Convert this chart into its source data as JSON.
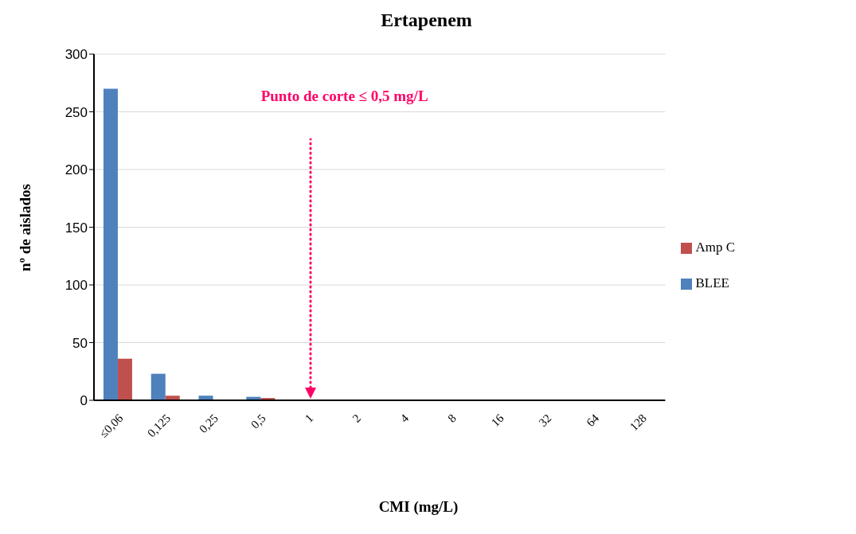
{
  "chart_data": {
    "type": "bar",
    "title": "Ertapenem",
    "xlabel": "CMI (mg/L)",
    "ylabel": "nº de aislados",
    "categories": [
      "≤0,06",
      "0,125",
      "0,25",
      "0,5",
      "1",
      "2",
      "4",
      "8",
      "16",
      "32",
      "64",
      "128"
    ],
    "series": [
      {
        "name": "BLEE",
        "color": "#4f81bd",
        "values": [
          270,
          23,
          4,
          3,
          0,
          0,
          0,
          0,
          0,
          0,
          0,
          0
        ]
      },
      {
        "name": "Amp C",
        "color": "#c0504d",
        "values": [
          36,
          4,
          0,
          2,
          0,
          0,
          0,
          0,
          0,
          0,
          0,
          0
        ]
      }
    ],
    "ylim": [
      0,
      300
    ],
    "yticks": [
      0,
      50,
      100,
      150,
      200,
      250,
      300
    ],
    "grid": "y",
    "legend": "right",
    "annotations": [
      "Punto de corte ≤ 0,5 mg/L"
    ]
  }
}
